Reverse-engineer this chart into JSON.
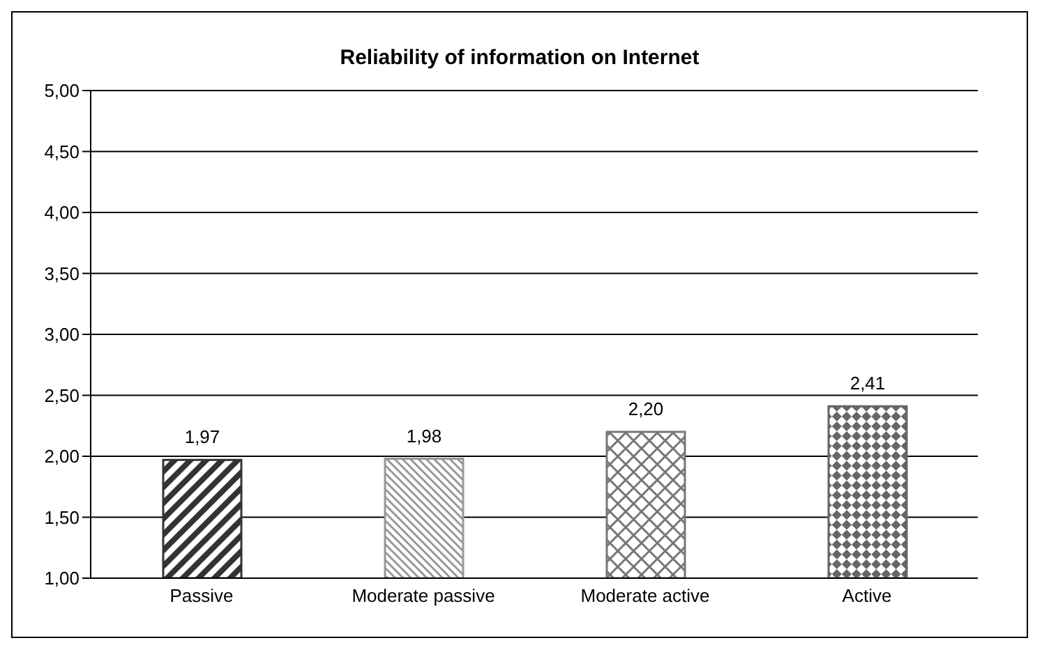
{
  "chart_data": {
    "type": "bar",
    "title": "Reliability of information on Internet",
    "categories": [
      "Passive",
      "Moderate passive",
      "Moderate active",
      "Active"
    ],
    "values": [
      1.97,
      1.98,
      2.2,
      2.41
    ],
    "colors": [
      "#333333",
      "#999999",
      "#777777",
      "#666666"
    ],
    "value_labels": [
      "1,97",
      "1,98",
      "2,20",
      "2,41"
    ],
    "ylim": [
      1,
      5
    ],
    "yticks": [
      {
        "value": 1,
        "label": "1,00"
      },
      {
        "value": 1.5,
        "label": "1,50"
      },
      {
        "value": 2,
        "label": "2,00"
      },
      {
        "value": 2.5,
        "label": "2,50"
      },
      {
        "value": 3,
        "label": "3,00"
      },
      {
        "value": 3.5,
        "label": "3,50"
      },
      {
        "value": 4,
        "label": "4,00"
      },
      {
        "value": 4.5,
        "label": "4,50"
      },
      {
        "value": 5,
        "label": "5,00"
      }
    ],
    "grid": "y",
    "legend": false
  }
}
